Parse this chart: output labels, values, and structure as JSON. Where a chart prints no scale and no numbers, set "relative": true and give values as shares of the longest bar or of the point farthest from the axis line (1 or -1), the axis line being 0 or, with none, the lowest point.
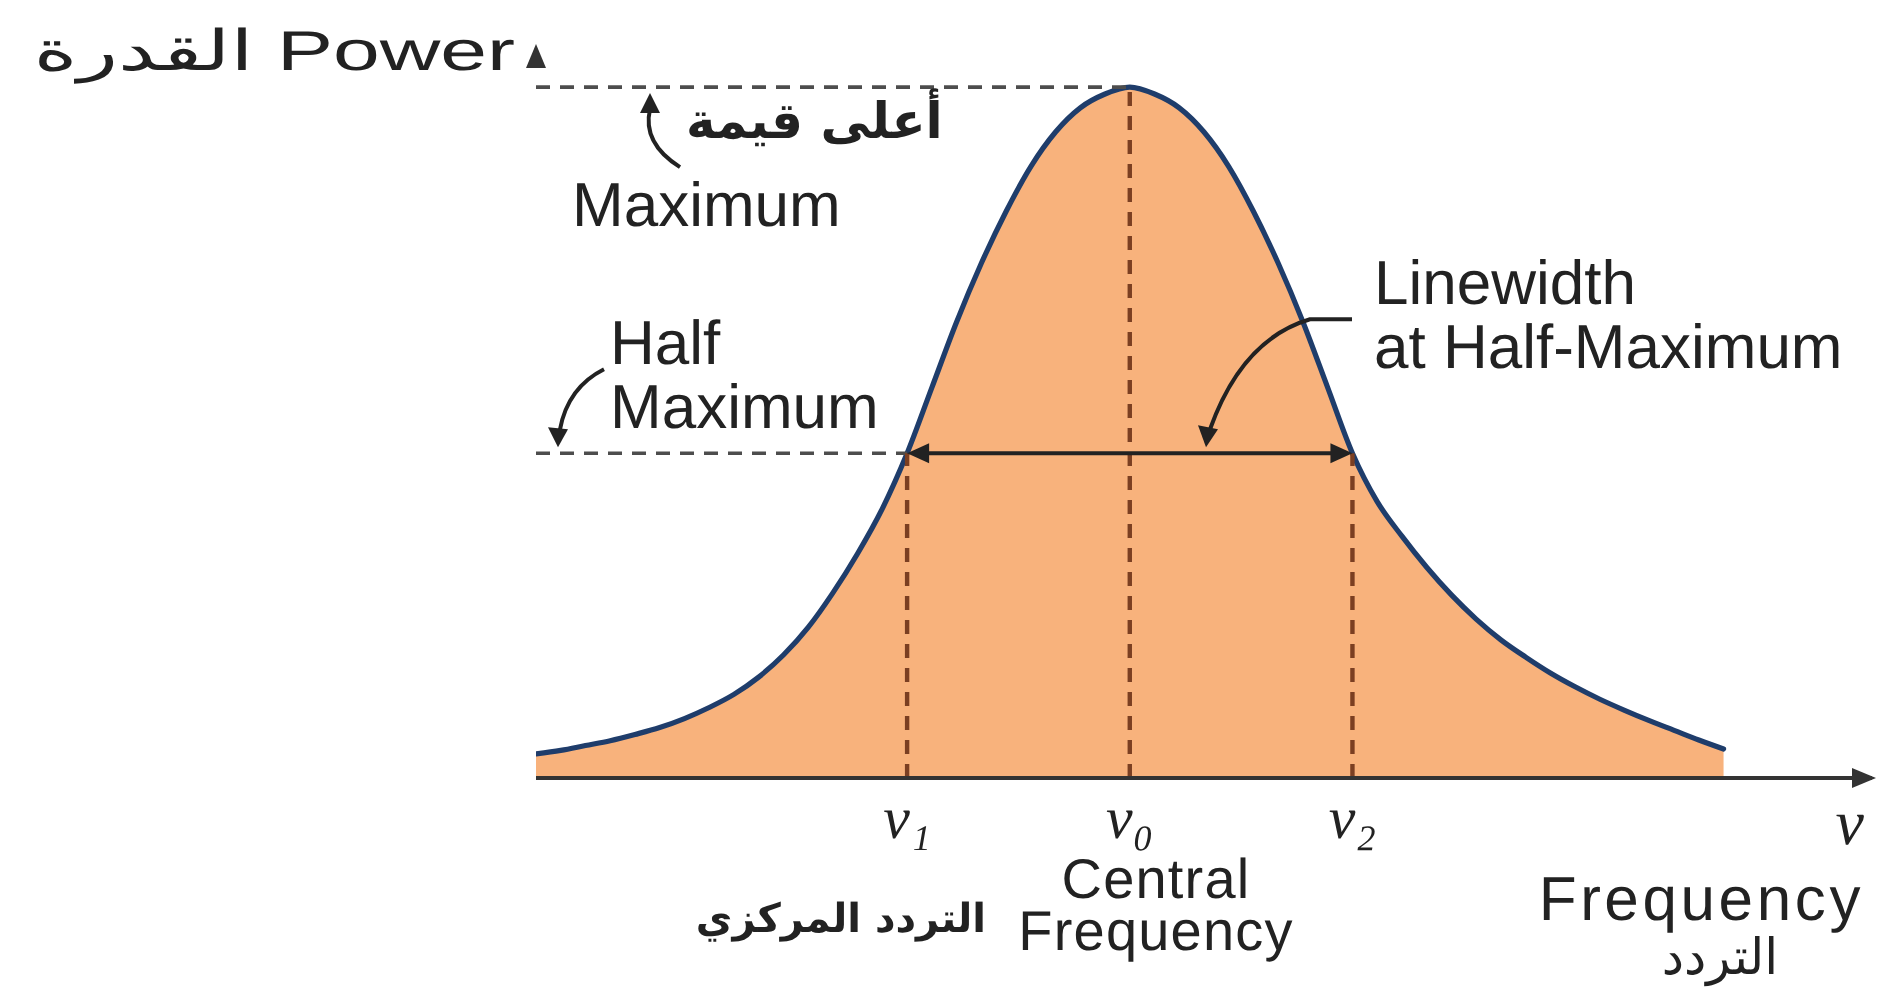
{
  "chart_data": {
    "type": "area",
    "relative": true,
    "tick_labels": "x",
    "ylabel": "القدرة Power",
    "xlabel": "ν",
    "categories": [
      null,
      null,
      null,
      null,
      null,
      null,
      null,
      null,
      null,
      null,
      null,
      null,
      null,
      null,
      null,
      "ν₁",
      null,
      null,
      null,
      null,
      null,
      null,
      null,
      null,
      "ν₀",
      null,
      null,
      null,
      null,
      null,
      null,
      null,
      null,
      "ν₂",
      null,
      null,
      null,
      null,
      null,
      null,
      null,
      null,
      null,
      null,
      null,
      null,
      null,
      null,
      null,
      null,
      null,
      null,
      null,
      null,
      null
    ],
    "series": [
      {
        "color": "#f8b27c",
        "values": [
          0.035,
          0.04,
          0.047,
          0.054,
          0.063,
          0.073,
          0.086,
          0.102,
          0.121,
          0.146,
          0.178,
          0.218,
          0.268,
          0.325,
          0.39,
          0.47,
          0.565,
          0.66,
          0.745,
          0.82,
          0.885,
          0.935,
          0.97,
          0.99,
          1,
          0.99,
          0.97,
          0.935,
          0.885,
          0.82,
          0.745,
          0.66,
          0.565,
          0.47,
          0.4,
          0.35,
          0.305,
          0.265,
          0.23,
          0.2,
          0.175,
          0.152,
          0.132,
          0.114,
          0.098,
          0.083,
          0.069,
          0.055,
          0.042,
          null,
          null,
          null,
          null,
          null,
          null
        ]
      },
      {
        "type": "line",
        "color": "#1f3d6b",
        "values": [
          0.035,
          0.04,
          0.047,
          0.054,
          0.063,
          0.073,
          0.086,
          0.102,
          0.121,
          0.146,
          0.178,
          0.218,
          0.268,
          0.325,
          0.39,
          0.47,
          0.565,
          0.66,
          0.745,
          0.82,
          0.885,
          0.935,
          0.97,
          0.99,
          1,
          0.99,
          0.97,
          0.935,
          0.885,
          0.82,
          0.745,
          0.66,
          0.565,
          0.47,
          0.4,
          0.35,
          0.305,
          0.265,
          0.23,
          0.2,
          0.175,
          0.152,
          0.132,
          0.114,
          0.098,
          0.083,
          0.069,
          0.055,
          0.042,
          null,
          null,
          null,
          null,
          null,
          null
        ]
      }
    ],
    "ref_lines": [
      {
        "axis": "y",
        "value": 1,
        "label": "Maximum",
        "color": "#4d4d4d",
        "line_style": "dashed"
      },
      {
        "axis": "y",
        "value": 0.47,
        "label": "Half Maximum",
        "color": "#4d4d4d",
        "line_style": "dashed"
      },
      {
        "axis": "x",
        "value": "ν₁",
        "color": "#7b3f22",
        "line_style": "dashed"
      },
      {
        "axis": "x",
        "value": "ν₀",
        "color": "#7b3f22",
        "line_style": "dashed"
      },
      {
        "axis": "x",
        "value": "ν₂",
        "color": "#7b3f22",
        "line_style": "dashed"
      }
    ],
    "annotations": [
      "أعلى قيمة",
      "Linewidth at Half-Maximum",
      "Central Frequency",
      "التردد المركزي",
      "Frequency",
      "التردد"
    ]
  }
}
